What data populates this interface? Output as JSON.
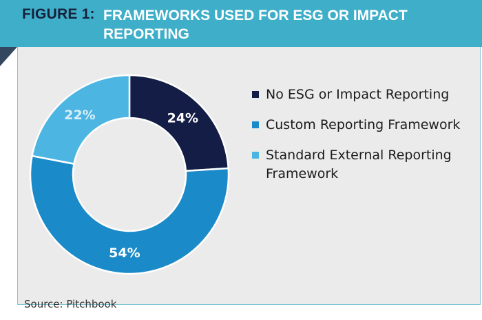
{
  "header": {
    "figure_label": "FIGURE 1:",
    "title": "FRAMEWORKS USED FOR ESG OR IMPACT REPORTING"
  },
  "chart_data": {
    "type": "pie",
    "donut": true,
    "title": "FRAMEWORKS USED FOR ESG OR IMPACT REPORTING",
    "categories": [
      "No ESG or Impact Reporting",
      "Custom Reporting Framework",
      "Standard External Reporting Framework"
    ],
    "values": [
      24,
      54,
      22
    ],
    "labels": [
      "24%",
      "54%",
      "22%"
    ],
    "colors": [
      "#141d45",
      "#1a8ac8",
      "#4cb5e2"
    ],
    "label_colors": [
      "#ffffff",
      "#ffffff",
      "#d8eef8"
    ],
    "legend_position": "right"
  },
  "source": "Source: Pitchbook"
}
